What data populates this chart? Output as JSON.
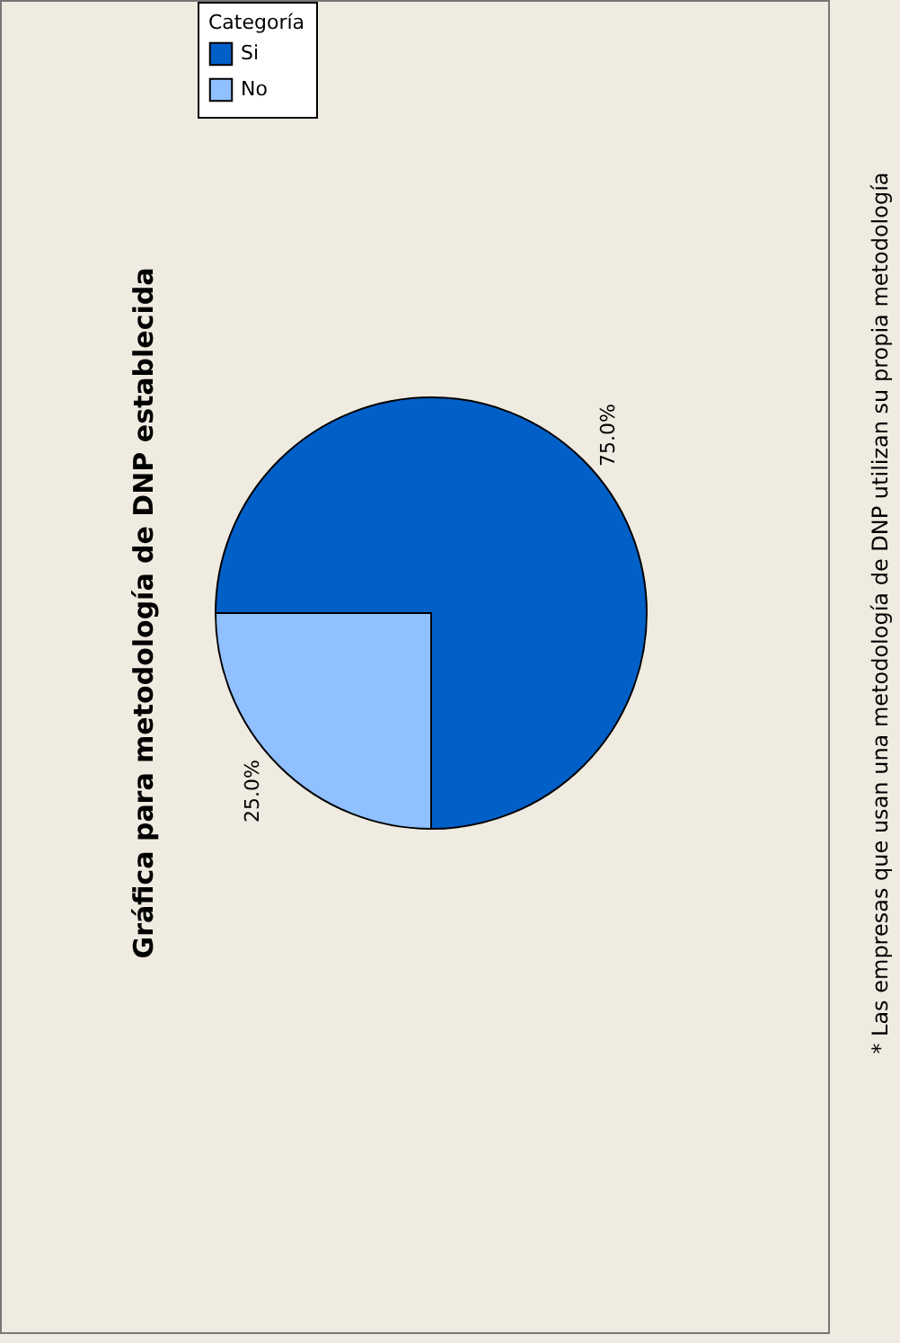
{
  "chart_data": {
    "type": "pie",
    "title": "Gráfica para metodología de DNP establecida",
    "categories": [
      "Si",
      "No"
    ],
    "values": [
      75,
      25
    ],
    "colors": [
      "#0060c8",
      "#90c0ff"
    ],
    "value_labels": [
      "75.0%",
      "25.0%"
    ],
    "legend_title": "Categoría",
    "legend": "top left",
    "annotations": [
      "* Las empresas que usan una metodología de DNP utilizan su propia metodología"
    ]
  }
}
